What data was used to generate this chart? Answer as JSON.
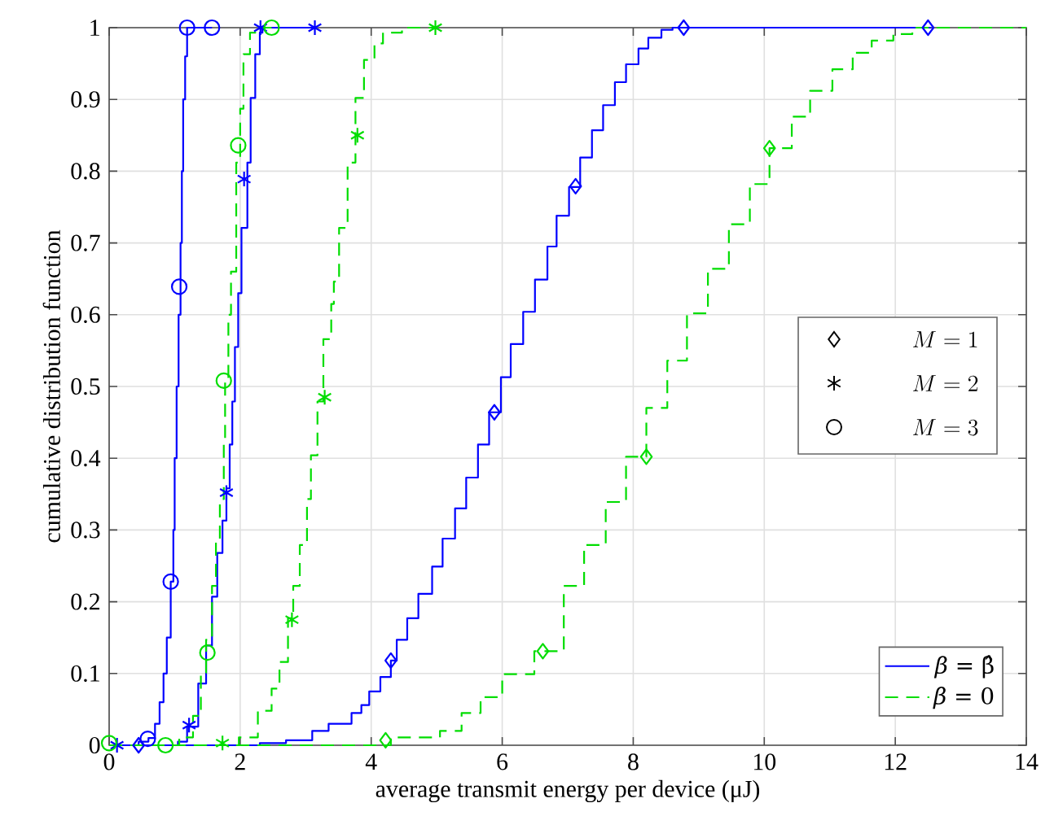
{
  "chart_data": {
    "type": "step",
    "xlabel": "average transmit energy per device (μJ)",
    "ylabel": "cumulative distribution function",
    "xlim": [
      0,
      14
    ],
    "ylim": [
      0,
      1
    ],
    "xticks": [
      0,
      2,
      4,
      6,
      8,
      10,
      12,
      14
    ],
    "yticks": [
      0,
      0.1,
      0.2,
      0.3,
      0.4,
      0.5,
      0.6,
      0.7,
      0.8,
      0.9,
      1
    ],
    "grid": true,
    "legend": "bottom right",
    "annotations": [
      "M=1",
      "M=2",
      "M=3"
    ],
    "series": [
      {
        "name": "*β* = β̂",
        "color": "#0000ff",
        "line_style": "solid",
        "x": [
          0,
          2.3,
          2.7,
          3.1,
          3.35,
          3.7,
          3.85,
          3.97,
          4.14,
          4.3,
          4.39,
          4.55,
          4.72,
          4.93,
          5.09,
          5.28,
          5.45,
          5.63,
          5.8,
          5.98,
          6.13,
          6.32,
          6.5,
          6.69,
          6.83,
          7.02,
          7.19,
          7.37,
          7.54,
          7.72,
          7.89,
          8.08,
          8.23,
          8.43,
          8.6,
          12.55
        ],
        "values": [
          0,
          0.003,
          0.007,
          0.02,
          0.03,
          0.045,
          0.056,
          0.075,
          0.095,
          0.118,
          0.147,
          0.177,
          0.211,
          0.249,
          0.288,
          0.33,
          0.373,
          0.419,
          0.464,
          0.513,
          0.559,
          0.604,
          0.649,
          0.695,
          0.738,
          0.778,
          0.819,
          0.857,
          0.892,
          0.924,
          0.949,
          0.971,
          0.986,
          0.997,
          1,
          1
        ]
      },
      {
        "color": "#0000ff",
        "line_style": "solid",
        "x": [
          0,
          1.05,
          1.19,
          1.36,
          1.48,
          1.57,
          1.65,
          1.73,
          1.79,
          1.84,
          1.88,
          1.92,
          1.97,
          2.02,
          2.11,
          2.16,
          2.23,
          2.3,
          2.34,
          3.14
        ],
        "values": [
          0,
          0.005,
          0.026,
          0.086,
          0.139,
          0.207,
          0.268,
          0.313,
          0.358,
          0.419,
          0.479,
          0.555,
          0.63,
          0.721,
          0.812,
          0.902,
          0.963,
          0.993,
          1,
          1
        ]
      },
      {
        "color": "#0000ff",
        "line_style": "solid",
        "x": [
          0,
          0.45,
          0.6,
          0.7,
          0.77,
          0.83,
          0.88,
          0.94,
          0.98,
          1.0,
          1.03,
          1.06,
          1.09,
          1.11,
          1.13,
          1.16,
          1.19,
          1.57
        ],
        "values": [
          0,
          0.005,
          0.01,
          0.03,
          0.06,
          0.1,
          0.15,
          0.228,
          0.3,
          0.4,
          0.5,
          0.6,
          0.7,
          0.8,
          0.9,
          0.96,
          1,
          1
        ]
      },
      {
        "name": "*β* = 0",
        "color": "#00dd00",
        "line_style": "dashed",
        "x": [
          0,
          4.3,
          5.05,
          5.38,
          5.67,
          6.0,
          6.49,
          6.94,
          7.25,
          7.58,
          7.89,
          8.2,
          8.52,
          8.82,
          9.14,
          9.46,
          9.78,
          10.08,
          10.42,
          10.7,
          11.04,
          11.35,
          11.64,
          11.97,
          12.26,
          14
        ],
        "values": [
          0,
          0.011,
          0.02,
          0.045,
          0.067,
          0.099,
          0.131,
          0.222,
          0.279,
          0.339,
          0.402,
          0.47,
          0.536,
          0.602,
          0.664,
          0.726,
          0.782,
          0.832,
          0.876,
          0.912,
          0.942,
          0.965,
          0.982,
          0.991,
          1,
          1
        ]
      },
      {
        "color": "#00dd00",
        "line_style": "dashed",
        "x": [
          0,
          1.98,
          2.27,
          2.48,
          2.6,
          2.73,
          2.81,
          2.91,
          3.02,
          3.08,
          3.18,
          3.27,
          3.39,
          3.43,
          3.51,
          3.64,
          3.76,
          3.89,
          4.05,
          4.18,
          4.47,
          4.98
        ],
        "values": [
          0,
          0.011,
          0.048,
          0.079,
          0.116,
          0.177,
          0.222,
          0.279,
          0.343,
          0.404,
          0.479,
          0.566,
          0.615,
          0.646,
          0.721,
          0.812,
          0.902,
          0.955,
          0.978,
          0.993,
          1,
          1
        ]
      },
      {
        "color": "#00dd00",
        "line_style": "dashed",
        "x": [
          0,
          1.07,
          1.28,
          1.4,
          1.48,
          1.57,
          1.63,
          1.69,
          1.75,
          1.77,
          1.82,
          1.86,
          1.94,
          2.0,
          2.05,
          2.15,
          2.23,
          2.48
        ],
        "values": [
          0,
          0.011,
          0.041,
          0.101,
          0.147,
          0.222,
          0.283,
          0.343,
          0.426,
          0.51,
          0.6,
          0.66,
          0.812,
          0.887,
          0.963,
          0.993,
          1,
          1
        ]
      },
      {
        "type": "scatter",
        "color": "#0000ff",
        "marker": "diamond",
        "x": [
          0.45,
          4.3,
          5.88,
          7.12,
          8.77,
          12.5
        ],
        "values": [
          0,
          0.118,
          0.464,
          0.779,
          1,
          1
        ]
      },
      {
        "type": "scatter",
        "color": "#0000ff",
        "marker": "cross",
        "x": [
          0.12,
          1.22,
          1.79,
          2.06,
          2.31,
          3.14
        ],
        "values": [
          0,
          0.028,
          0.352,
          0.789,
          1,
          1
        ]
      },
      {
        "type": "scatter",
        "color": "#0000ff",
        "marker": "circle",
        "x": [
          0.59,
          0.94,
          1.07,
          1.19,
          1.57
        ],
        "values": [
          0.009,
          0.228,
          0.639,
          1,
          1
        ]
      },
      {
        "type": "scatter",
        "color": "#00dd00",
        "marker": "diamond",
        "x": [
          4.22,
          6.62,
          8.2,
          10.08
        ],
        "values": [
          0.007,
          0.131,
          0.402,
          0.832
        ]
      },
      {
        "type": "scatter",
        "color": "#00dd00",
        "marker": "cross",
        "x": [
          1.73,
          2.79,
          3.29,
          3.79,
          4.98
        ],
        "values": [
          0.003,
          0.175,
          0.485,
          0.85,
          1
        ]
      },
      {
        "type": "scatter",
        "color": "#00dd00",
        "marker": "circle",
        "x": [
          0,
          0.86,
          1.5,
          1.75,
          1.97,
          2.48
        ],
        "values": [
          0.003,
          0,
          0.129,
          0.508,
          0.836,
          1
        ]
      }
    ]
  }
}
